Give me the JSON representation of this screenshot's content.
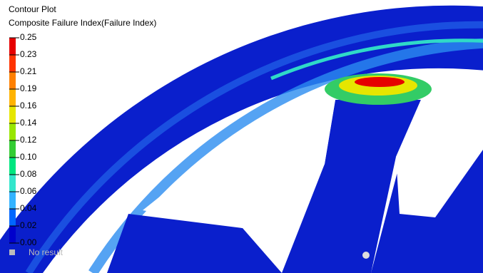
{
  "header": {
    "title": "Contour Plot",
    "subtitle": "Composite Failure Index(Failure Index)"
  },
  "legend": {
    "levels": [
      "0.25",
      "0.23",
      "0.21",
      "0.19",
      "0.16",
      "0.14",
      "0.12",
      "0.10",
      "0.08",
      "0.06",
      "0.04",
      "0.02",
      "0.00"
    ],
    "colors": [
      "#e60000",
      "#ff3300",
      "#ff8000",
      "#ffb300",
      "#e6e600",
      "#99e600",
      "#33cc33",
      "#00e680",
      "#33e6cc",
      "#33b3ff",
      "#0066ff",
      "#0000cc"
    ],
    "no_result": "No result"
  }
}
